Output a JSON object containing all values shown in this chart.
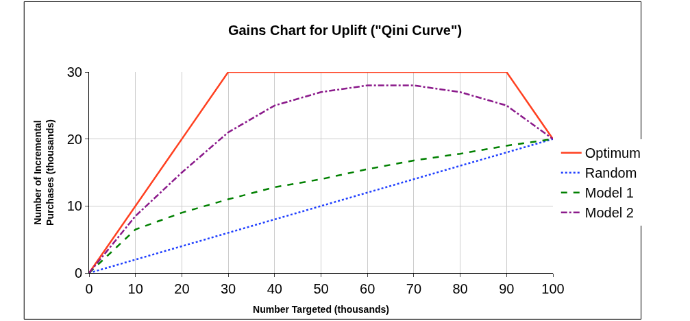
{
  "chart_data": {
    "type": "line",
    "title": "Gains Chart for Uplift (\"Qini Curve\")",
    "xlabel": "Number Targeted (thousands)",
    "ylabel": "Number of Incremental Purchases (thousands)",
    "x": [
      0,
      10,
      20,
      30,
      40,
      50,
      60,
      70,
      80,
      90,
      100
    ],
    "series": [
      {
        "name": "Optimum",
        "color": "#ff4020",
        "line_style": "solid",
        "x": [
          0,
          30,
          90,
          100
        ],
        "values": [
          0,
          30,
          30,
          20
        ]
      },
      {
        "name": "Random",
        "color": "#1f3fff",
        "line_style": "dotted",
        "values": [
          0,
          2,
          4,
          6,
          8,
          10,
          12,
          14,
          16,
          18,
          20
        ]
      },
      {
        "name": "Model 1",
        "color": "#008000",
        "line_style": "dashed",
        "values": [
          0,
          6.5,
          9,
          11,
          12.8,
          14,
          15.5,
          16.8,
          17.8,
          19,
          20
        ]
      },
      {
        "name": "Model 2",
        "color": "#8b1a8b",
        "line_style": "dashdot",
        "values": [
          0,
          8.5,
          15,
          21,
          25,
          27,
          28,
          28,
          27,
          25,
          20
        ]
      }
    ],
    "xlim": [
      0,
      100
    ],
    "xticks": [
      0,
      10,
      20,
      30,
      40,
      50,
      60,
      70,
      80,
      90,
      100
    ],
    "ylim": [
      0,
      30
    ],
    "yticks": [
      0,
      10,
      20,
      30
    ],
    "grid": true,
    "legend": "right",
    "marker": "none"
  }
}
